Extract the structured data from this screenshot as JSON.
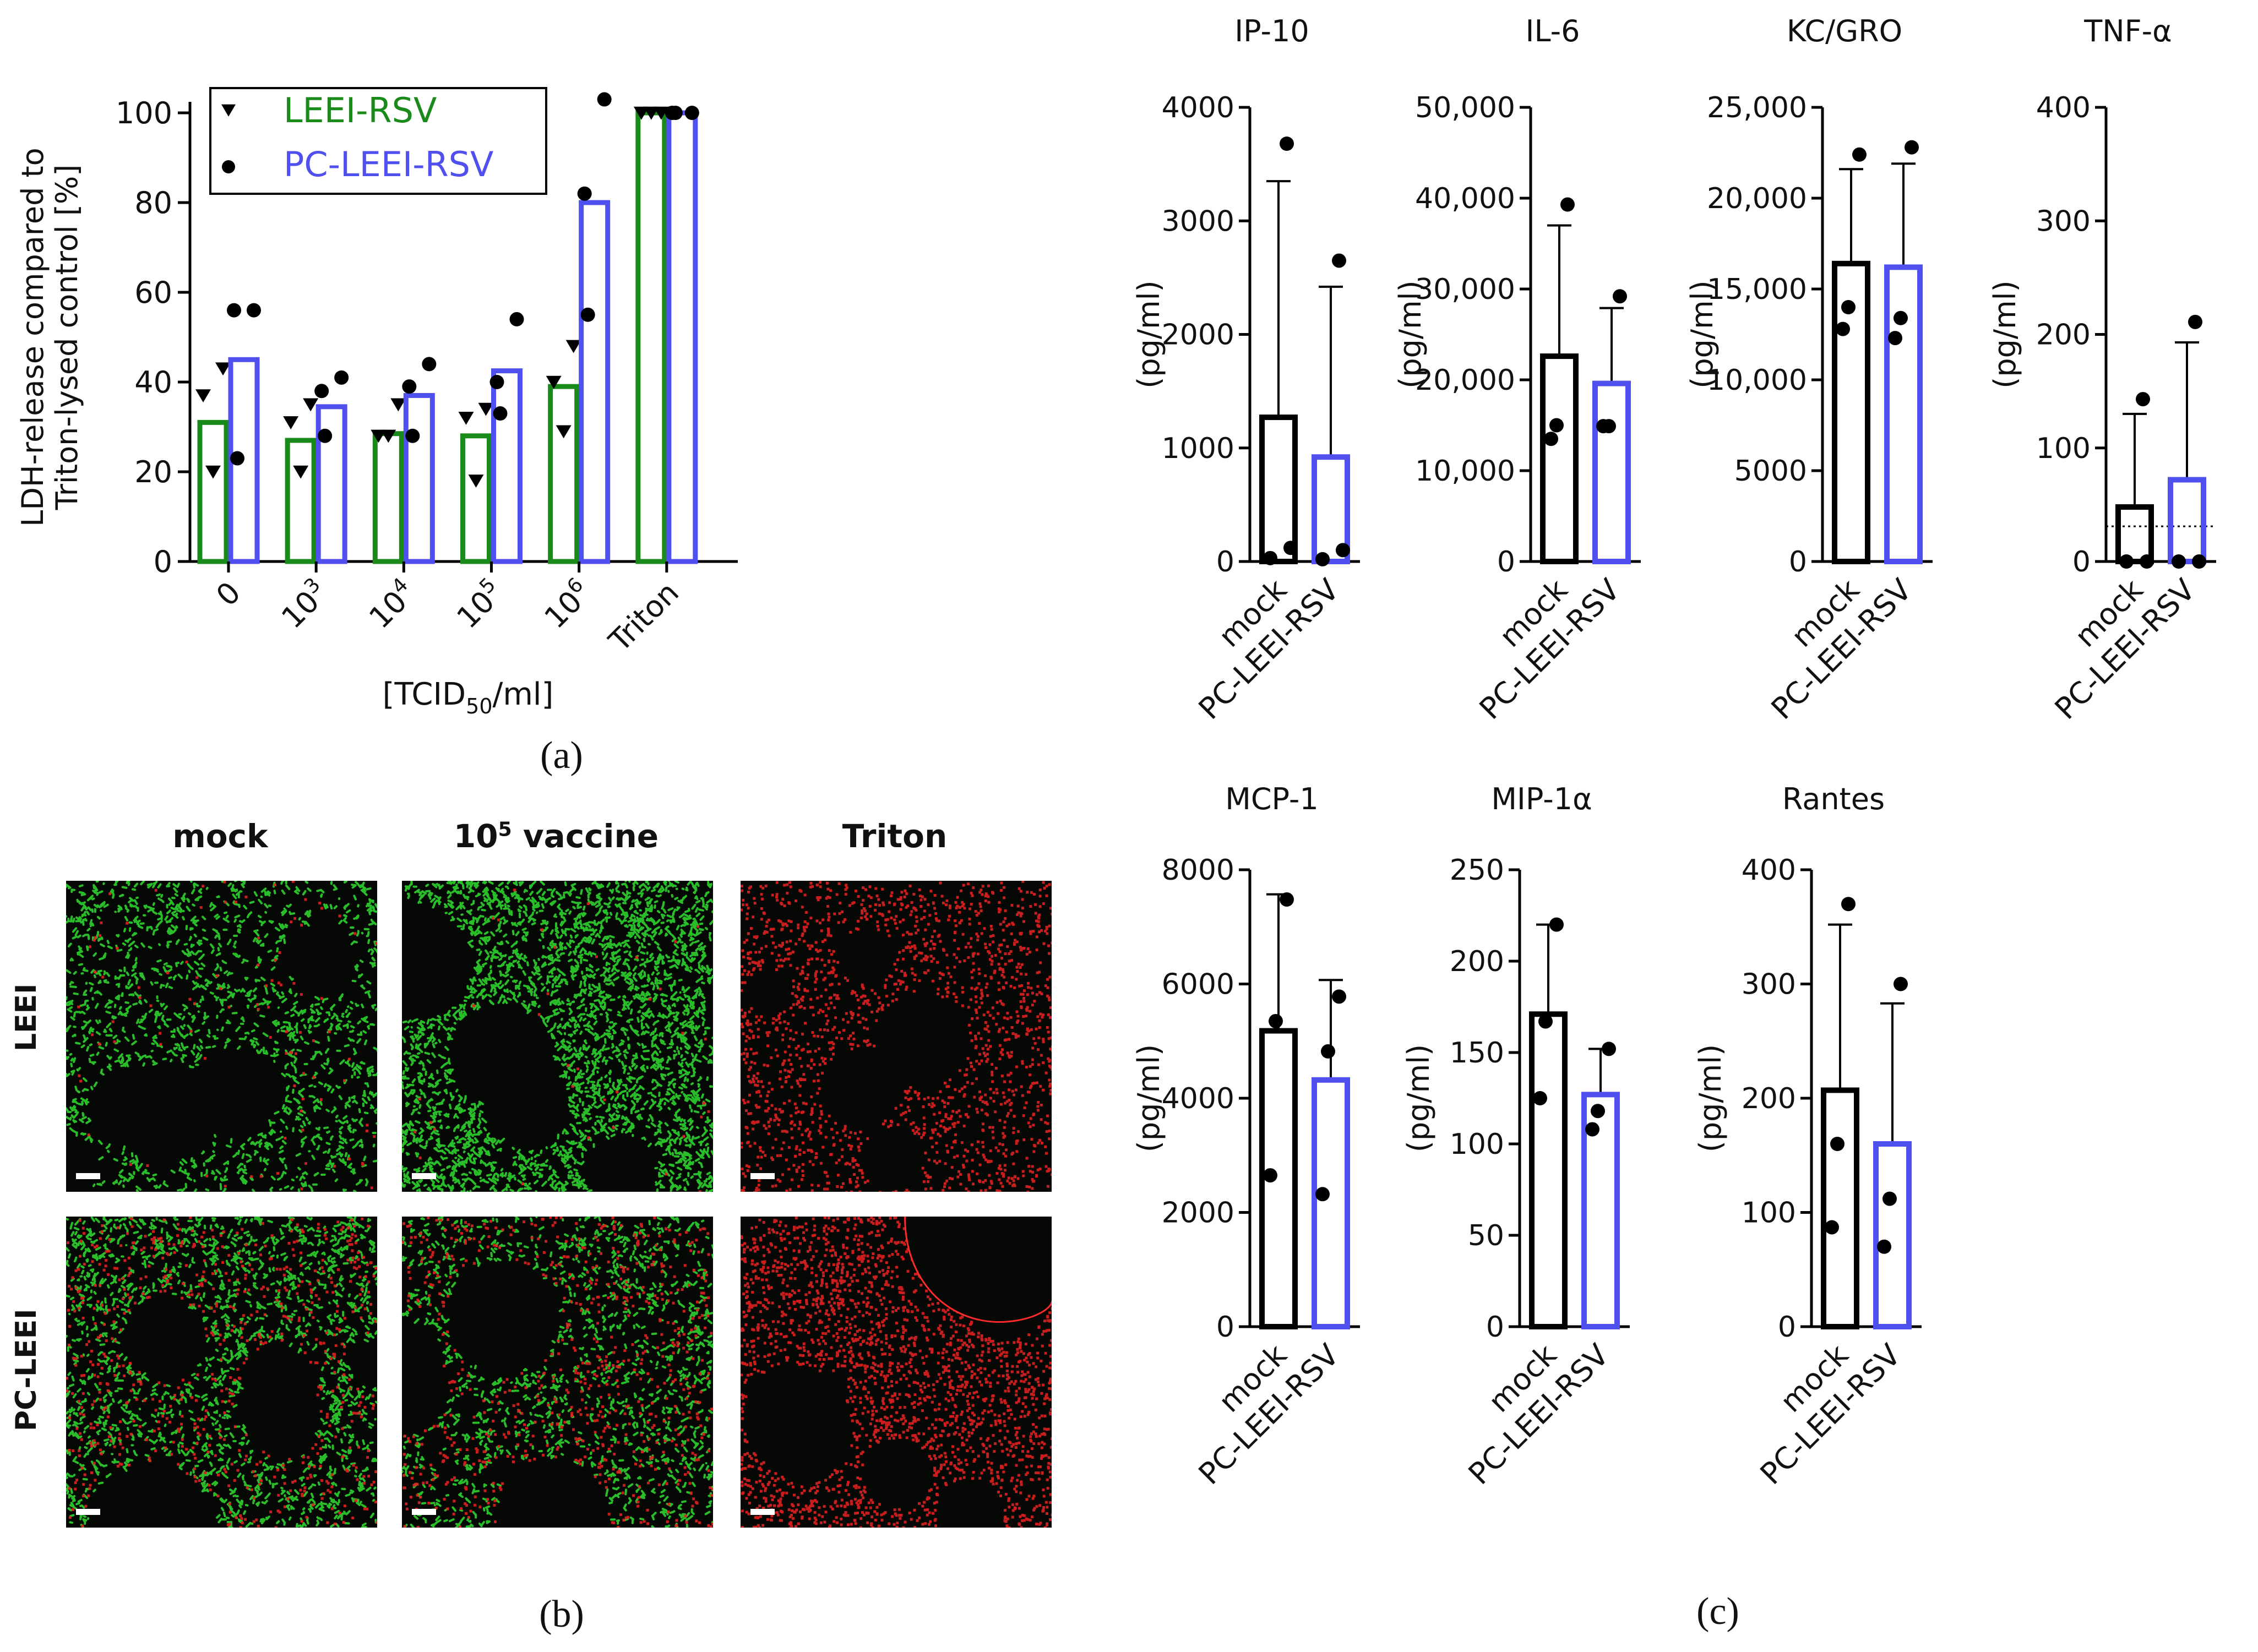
{
  "colors": {
    "leei": "#1a8a1a",
    "pc_leei": "#5050ee",
    "mock": "#000000",
    "text": "#111111"
  },
  "panel_labels": {
    "a": "(a)",
    "b": "(b)",
    "c": "(c)"
  },
  "panel_b": {
    "columns": [
      "mock",
      "10",
      "vaccine",
      "Triton"
    ],
    "column_sup": "5",
    "rows": [
      "LEEI",
      "PC-LEEI"
    ],
    "images": [
      {
        "row": "LEEI",
        "col": "mock",
        "content": "green-dominant lung tissue stain"
      },
      {
        "row": "LEEI",
        "col": "10^5 vaccine",
        "content": "dense green tissue stain"
      },
      {
        "row": "LEEI",
        "col": "Triton",
        "content": "red nuclei only"
      },
      {
        "row": "PC-LEEI",
        "col": "mock",
        "content": "mixed green and red"
      },
      {
        "row": "PC-LEEI",
        "col": "10^5 vaccine",
        "content": "green and red"
      },
      {
        "row": "PC-LEEI",
        "col": "Triton",
        "content": "red nuclei only"
      }
    ]
  },
  "chart_data": [
    {
      "type": "bar",
      "id": "a",
      "ylabel_line1": "LDH-release compared to",
      "ylabel_line2": "Triton-lysed control [%]",
      "xlabel": "[TCID50/ml]",
      "xlabel_main": "[TCID",
      "xlabel_sub": "50",
      "xlabel_end": "/ml]",
      "categories": [
        "0",
        "10^3",
        "10^4",
        "10^5",
        "10^6",
        "Triton"
      ],
      "tick_base": [
        "0",
        "10",
        "10",
        "10",
        "10",
        "Triton"
      ],
      "tick_sup": [
        "",
        "3",
        "4",
        "5",
        "6",
        ""
      ],
      "ylim": [
        0,
        100
      ],
      "yticks": [
        0,
        20,
        40,
        60,
        80,
        100
      ],
      "legend": {
        "position": "top-left",
        "entries": [
          "LEEI-RSV",
          "PC-LEEI-RSV"
        ]
      },
      "series": [
        {
          "name": "LEEI-RSV",
          "marker": "triangle-down",
          "values": [
            31,
            27,
            28.5,
            28,
            39,
            100
          ],
          "points": [
            [
              43,
              37,
              20
            ],
            [
              35,
              31,
              20
            ],
            [
              35,
              28,
              28
            ],
            [
              34,
              32,
              18
            ],
            [
              48,
              40,
              29
            ],
            [
              100,
              100,
              100
            ]
          ]
        },
        {
          "name": "PC-LEEI-RSV",
          "marker": "circle",
          "values": [
            45,
            34.5,
            37,
            42.5,
            80,
            100
          ],
          "points": [
            [
              56,
              56,
              23
            ],
            [
              41,
              38,
              28
            ],
            [
              44,
              39,
              28
            ],
            [
              54,
              40,
              33
            ],
            [
              103,
              82,
              55
            ],
            [
              100,
              100,
              100
            ]
          ]
        }
      ]
    },
    {
      "type": "bar",
      "id": "IP-10",
      "title": "IP-10",
      "ylabel": "(pg/ml)",
      "categories": [
        "mock",
        "PC-LEEI-RSV"
      ],
      "ylim": [
        0,
        4000
      ],
      "yticks": [
        "0",
        "1000",
        "2000",
        "3000",
        "4000"
      ],
      "ytick_values": [
        0,
        1000,
        2000,
        3000,
        4000
      ],
      "values": [
        1270,
        920
      ],
      "err_upper": [
        3350,
        2420
      ],
      "points": [
        [
          3680,
          120,
          30
        ],
        [
          2650,
          100,
          20
        ]
      ]
    },
    {
      "type": "bar",
      "id": "IL-6",
      "title": "IL-6",
      "ylabel": "(pg/ml)",
      "categories": [
        "mock",
        "PC-LEEI-RSV"
      ],
      "ylim": [
        0,
        50000
      ],
      "yticks": [
        "0",
        "10,000",
        "20,000",
        "30,000",
        "40,000",
        "50,000"
      ],
      "ytick_values": [
        0,
        10000,
        20000,
        30000,
        40000,
        50000
      ],
      "values": [
        22600,
        19600
      ],
      "err_upper": [
        37000,
        27900
      ],
      "points": [
        [
          39300,
          15000,
          13500
        ],
        [
          29200,
          14900,
          14900
        ]
      ]
    },
    {
      "type": "bar",
      "id": "KC/GRO",
      "title": "KC/GRO",
      "ylabel": "(pg/ml)",
      "categories": [
        "mock",
        "PC-LEEI-RSV"
      ],
      "ylim": [
        0,
        25000
      ],
      "yticks": [
        "0",
        "5000",
        "10,000",
        "15,000",
        "20,000",
        "25,000"
      ],
      "ytick_values": [
        0,
        5000,
        10000,
        15000,
        20000,
        25000
      ],
      "values": [
        16400,
        16200
      ],
      "err_upper": [
        21600,
        21900
      ],
      "points": [
        [
          22400,
          14000,
          12800
        ],
        [
          22800,
          13400,
          12300
        ]
      ]
    },
    {
      "type": "bar",
      "id": "TNF-α",
      "title": "TNF-α",
      "ylabel": "(pg/ml)",
      "categories": [
        "mock",
        "PC-LEEI-RSV"
      ],
      "ylim": [
        0,
        400
      ],
      "yticks": [
        "0",
        "100",
        "200",
        "300",
        "400"
      ],
      "ytick_values": [
        0,
        100,
        200,
        300,
        400
      ],
      "values": [
        48,
        72
      ],
      "err_upper": [
        130,
        193
      ],
      "points": [
        [
          143,
          0,
          0
        ],
        [
          211,
          0,
          0
        ]
      ],
      "reference_line": 31
    },
    {
      "type": "bar",
      "id": "MCP-1",
      "title": "MCP-1",
      "ylabel": "(pg/ml)",
      "categories": [
        "mock",
        "PC-LEEI-RSV"
      ],
      "ylim": [
        0,
        8000
      ],
      "yticks": [
        "0",
        "2000",
        "4000",
        "6000",
        "8000"
      ],
      "ytick_values": [
        0,
        2000,
        4000,
        6000,
        8000
      ],
      "values": [
        5180,
        4320
      ],
      "err_upper": [
        7570,
        6070
      ],
      "points": [
        [
          7480,
          5350,
          2650
        ],
        [
          5780,
          4820,
          2320
        ]
      ]
    },
    {
      "type": "bar",
      "id": "MIP-1α",
      "title": "MIP-1α",
      "ylabel": "(pg/ml)",
      "categories": [
        "mock",
        "PC-LEEI-RSV"
      ],
      "ylim": [
        0,
        250
      ],
      "yticks": [
        "0",
        "50",
        "100",
        "150",
        "200",
        "250"
      ],
      "ytick_values": [
        0,
        50,
        100,
        150,
        200,
        250
      ],
      "values": [
        171,
        127
      ],
      "err_upper": [
        220,
        152
      ],
      "points": [
        [
          220,
          167,
          125
        ],
        [
          152,
          118,
          108
        ]
      ]
    },
    {
      "type": "bar",
      "id": "Rantes",
      "title": "Rantes",
      "ylabel": "(pg/ml)",
      "categories": [
        "mock",
        "PC-LEEI-RSV"
      ],
      "ylim": [
        0,
        400
      ],
      "yticks": [
        "0",
        "100",
        "200",
        "300",
        "400"
      ],
      "ytick_values": [
        0,
        100,
        200,
        300,
        400
      ],
      "values": [
        207,
        160
      ],
      "err_upper": [
        352,
        283
      ],
      "points": [
        [
          370,
          160,
          87
        ],
        [
          300,
          112,
          70
        ]
      ]
    }
  ]
}
